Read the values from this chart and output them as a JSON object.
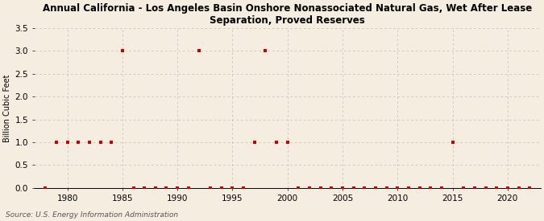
{
  "title": "Annual California - Los Angeles Basin Onshore Nonassociated Natural Gas, Wet After Lease\nSeparation, Proved Reserves",
  "ylabel": "Billion Cubic Feet",
  "source": "Source: U.S. Energy Information Administration",
  "background_color": "#f5ede0",
  "plot_background_color": "#f5ede0",
  "marker_color": "#cc0000",
  "xlim": [
    1977,
    2023
  ],
  "ylim": [
    0.0,
    3.5
  ],
  "yticks": [
    0.0,
    0.5,
    1.0,
    1.5,
    2.0,
    2.5,
    3.0,
    3.5
  ],
  "xticks": [
    1980,
    1985,
    1990,
    1995,
    2000,
    2005,
    2010,
    2015,
    2020
  ],
  "years": [
    1978,
    1979,
    1980,
    1981,
    1982,
    1983,
    1984,
    1985,
    1986,
    1987,
    1988,
    1989,
    1990,
    1991,
    1992,
    1993,
    1994,
    1995,
    1996,
    1997,
    1998,
    1999,
    2000,
    2001,
    2002,
    2003,
    2004,
    2005,
    2006,
    2007,
    2008,
    2009,
    2010,
    2011,
    2012,
    2013,
    2014,
    2015,
    2016,
    2017,
    2018,
    2019,
    2020,
    2021,
    2022
  ],
  "values": [
    0.0,
    1.0,
    1.0,
    1.0,
    1.0,
    1.0,
    1.0,
    3.0,
    0.0,
    0.0,
    0.0,
    0.0,
    0.0,
    0.0,
    3.0,
    0.0,
    0.0,
    0.0,
    0.0,
    1.0,
    3.0,
    1.0,
    1.0,
    0.0,
    0.0,
    0.0,
    0.0,
    0.0,
    0.0,
    0.0,
    0.0,
    0.0,
    0.0,
    0.0,
    0.0,
    0.0,
    0.0,
    1.0,
    0.0,
    0.0,
    0.0,
    0.0,
    0.0,
    0.0,
    0.0
  ]
}
